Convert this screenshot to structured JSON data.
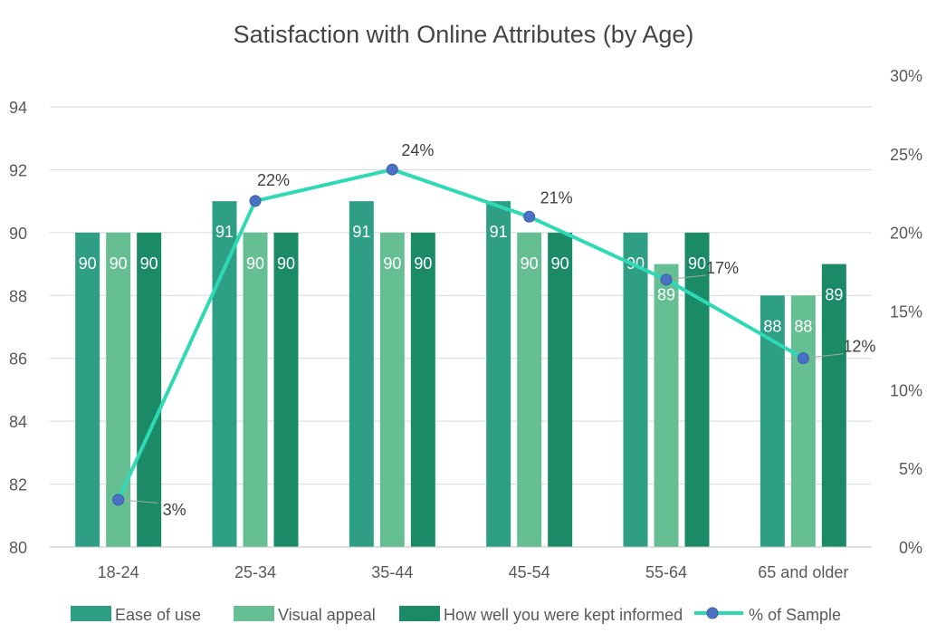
{
  "chart_data": {
    "type": "bar",
    "title": "Satisfaction with Online Attributes (by Age)",
    "categories": [
      "18-24",
      "25-34",
      "35-44",
      "45-54",
      "55-64",
      "65 and older"
    ],
    "series": [
      {
        "name": "Ease of use",
        "values": [
          90,
          91,
          91,
          91,
          90,
          88
        ],
        "color": "#2e9e84"
      },
      {
        "name": "Visual appeal",
        "values": [
          90,
          90,
          90,
          90,
          89,
          88
        ],
        "color": "#66bf92"
      },
      {
        "name": "How well you were kept informed",
        "values": [
          90,
          90,
          90,
          90,
          90,
          89
        ],
        "color": "#1b8a66"
      }
    ],
    "line_series": {
      "name": "% of Sample",
      "values": [
        3,
        22,
        24,
        21,
        17,
        12
      ],
      "labels": [
        "3%",
        "22%",
        "24%",
        "21%",
        "17%",
        "12%"
      ],
      "line_color": "#2fd9b6",
      "marker_color": "#4a72c4",
      "axis": "secondary"
    },
    "y_axis": {
      "min": 80,
      "max": 94,
      "step": 2,
      "ticks": [
        "80",
        "82",
        "84",
        "86",
        "88",
        "90",
        "92",
        "94"
      ]
    },
    "y2_axis": {
      "min": 0,
      "max": 30,
      "step": 5,
      "ticks": [
        "0%",
        "5%",
        "10%",
        "15%",
        "20%",
        "25%",
        "30%"
      ]
    },
    "grid": true,
    "legend_position": "bottom"
  }
}
